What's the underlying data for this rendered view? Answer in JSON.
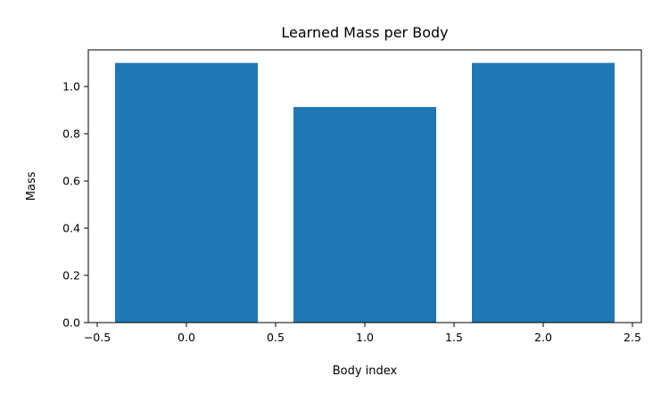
{
  "chart_data": {
    "type": "bar",
    "title": "Learned Mass per Body",
    "xlabel": "Body index",
    "ylabel": "Mass",
    "x": [
      0,
      1,
      2
    ],
    "values": [
      1.1,
      0.913,
      1.1
    ],
    "bar_width": 0.8,
    "xlim": [
      -0.55,
      2.55
    ],
    "ylim": [
      0,
      1.155
    ],
    "xticks": [
      -0.5,
      0.0,
      0.5,
      1.0,
      1.5,
      2.0,
      2.5
    ],
    "xtick_labels": [
      "−0.5",
      "0.0",
      "0.5",
      "1.0",
      "1.5",
      "2.0",
      "2.5"
    ],
    "yticks": [
      0.0,
      0.2,
      0.4,
      0.6,
      0.8,
      1.0
    ],
    "ytick_labels": [
      "0.0",
      "0.2",
      "0.4",
      "0.6",
      "0.8",
      "1.0"
    ],
    "grid": false,
    "bar_color": "#1f77b4"
  }
}
